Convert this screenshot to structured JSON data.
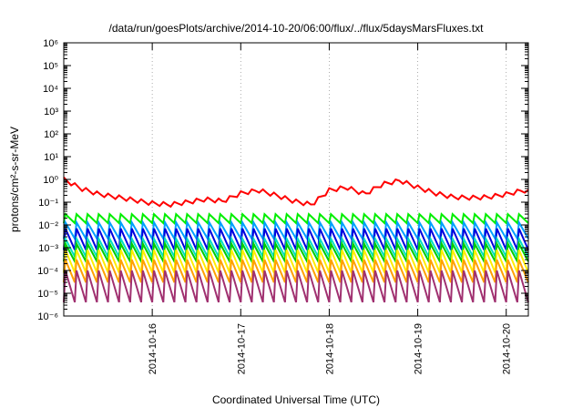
{
  "chart_data": {
    "type": "line",
    "title": "/data/run/goesPlots/archive/2014-10-20/06:00/flux/../flux/5daysMarsFluxes.txt",
    "xlabel": "Coordinated Universal Time (UTC)",
    "ylabel": "protons/cm²-s-sr-MeV",
    "y_scale": "log",
    "ylim_exponents": [
      -6,
      6
    ],
    "y_tick_labels": [
      "10⁻⁶",
      "10⁻⁵",
      "10⁻⁴",
      "10⁻³",
      "10⁻²",
      "10⁻¹",
      "10⁰",
      "10¹",
      "10²",
      "10³",
      "10⁴",
      "10⁵",
      "10⁶"
    ],
    "xlim": [
      "2014-10-15 00:00",
      "2014-10-20 06:00"
    ],
    "x_ticks": [
      "2014-10-16",
      "2014-10-17",
      "2014-10-18",
      "2014-10-19",
      "2014-10-20"
    ],
    "grid": true,
    "sawtooth_cycles": 42,
    "series": [
      {
        "color": "#ff0000",
        "x": [
          0.0,
          0.2,
          0.4,
          0.6,
          0.8,
          1.0,
          1.2,
          1.4,
          1.6,
          1.8,
          2.0,
          2.2,
          2.4,
          2.6,
          2.8,
          3.0,
          3.2,
          3.4,
          3.6,
          3.8,
          4.0,
          4.2,
          4.4,
          4.6,
          4.8,
          5.0,
          5.2,
          5.25
        ],
        "y": [
          0.9,
          0.35,
          0.2,
          0.15,
          0.11,
          0.08,
          0.07,
          0.09,
          0.12,
          0.1,
          0.22,
          0.3,
          0.18,
          0.1,
          0.07,
          0.3,
          0.4,
          0.2,
          0.55,
          0.8,
          0.4,
          0.22,
          0.15,
          0.14,
          0.15,
          0.2,
          0.3,
          0.25
        ],
        "sawtooth_depth": 1.9
      },
      {
        "color": "#00ee00",
        "y_top": 0.03,
        "y_bottom": 0.012
      },
      {
        "color": "#00a0ff",
        "y_top": 0.013,
        "y_bottom": 0.0025
      },
      {
        "color": "#0000dd",
        "y_top": 0.007,
        "y_bottom": 0.0008
      },
      {
        "color": "#00e0c0",
        "y_top": 0.0025,
        "y_bottom": 0.0004
      },
      {
        "color": "#00cc00",
        "y_top": 0.0015,
        "y_bottom": 0.00025
      },
      {
        "color": "#ffee00",
        "y_top": 0.0008,
        "y_bottom": 8e-05
      },
      {
        "color": "#ffa000",
        "y_top": 0.0003,
        "y_bottom": 3e-05
      },
      {
        "color": "#a03070",
        "y_top": 0.0001,
        "y_bottom": 4e-06
      }
    ]
  }
}
